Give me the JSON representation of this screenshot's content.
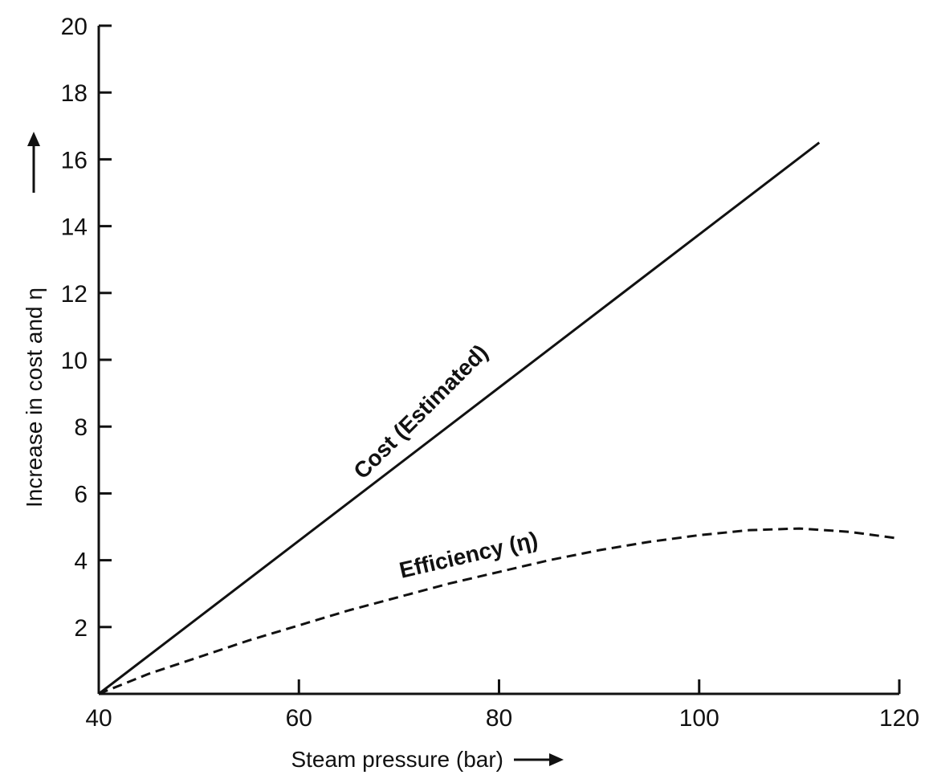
{
  "chart_data": {
    "type": "line",
    "xlabel": "Steam pressure (bar)",
    "ylabel": "Increase in cost and η",
    "xlim": [
      40,
      120
    ],
    "ylim": [
      0,
      20
    ],
    "x_ticks": [
      40,
      60,
      80,
      100,
      120
    ],
    "y_ticks": [
      2,
      4,
      6,
      8,
      10,
      12,
      14,
      16,
      18,
      20
    ],
    "grid": false,
    "legend": "none",
    "series": [
      {
        "name": "Cost (Estimated)",
        "style": "solid",
        "color": "#111111",
        "x": [
          40,
          112
        ],
        "y": [
          0,
          16.5
        ]
      },
      {
        "name": "Efficiency (η)",
        "style": "dashed",
        "color": "#111111",
        "x": [
          40,
          45,
          50,
          55,
          60,
          65,
          70,
          75,
          80,
          85,
          90,
          95,
          100,
          105,
          110,
          115,
          120
        ],
        "y": [
          0,
          0.6,
          1.1,
          1.6,
          2.05,
          2.5,
          2.9,
          3.3,
          3.65,
          4.0,
          4.3,
          4.55,
          4.75,
          4.9,
          4.95,
          4.85,
          4.65
        ]
      }
    ]
  }
}
